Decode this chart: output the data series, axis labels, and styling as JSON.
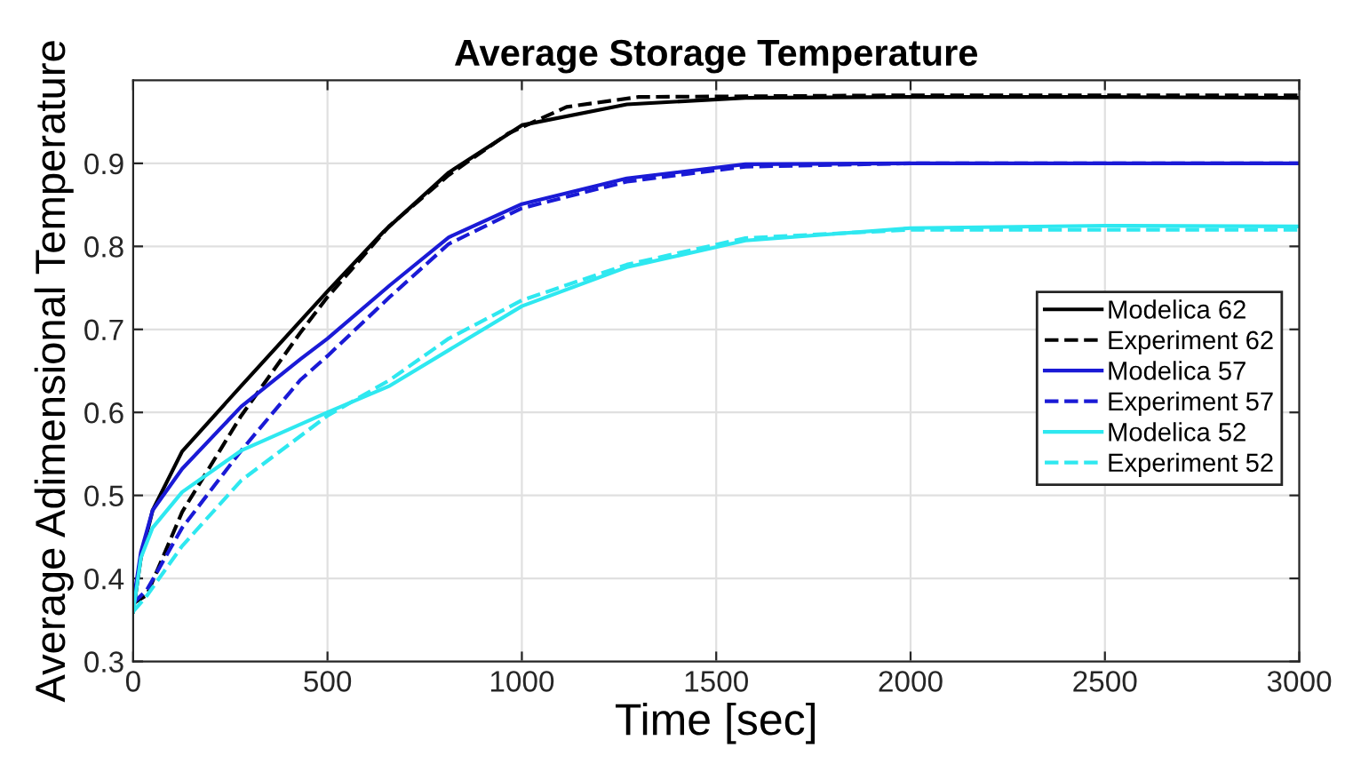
{
  "chart_data": {
    "type": "line",
    "title": "Average Storage Temperature",
    "xlabel": "Time [sec]",
    "ylabel": "Average Adimensional Temperature",
    "xlim": [
      0,
      3000
    ],
    "ylim": [
      0.3,
      1.0
    ],
    "xticks": [
      0,
      500,
      1000,
      1500,
      2000,
      2500,
      3000
    ],
    "yticks": [
      0.3,
      0.4,
      0.5,
      0.6,
      0.7,
      0.8,
      0.9
    ],
    "grid": true,
    "legend": "right",
    "series": [
      {
        "name": "Modelica 62",
        "color": "#000000",
        "line_style": "solid",
        "x": [
          0,
          20,
          50,
          126,
          278,
          500,
          645,
          812,
          1000,
          1270,
          1575,
          2000,
          2500,
          3000
        ],
        "values": [
          0.36,
          0.425,
          0.482,
          0.553,
          0.632,
          0.746,
          0.818,
          0.889,
          0.946,
          0.971,
          0.979,
          0.98,
          0.98,
          0.979
        ]
      },
      {
        "name": "Experiment 62",
        "color": "#000000",
        "line_style": "dashed",
        "x": [
          0,
          35,
          126,
          278,
          430,
          500,
          660,
          812,
          965,
          1115,
          1300,
          2000,
          2500,
          3000
        ],
        "values": [
          0.37,
          0.38,
          0.48,
          0.596,
          0.696,
          0.739,
          0.825,
          0.886,
          0.936,
          0.968,
          0.98,
          0.982,
          0.982,
          0.982
        ]
      },
      {
        "name": "Modelica 57",
        "color": "#1a1ad6",
        "line_style": "solid",
        "x": [
          0,
          20,
          50,
          126,
          278,
          430,
          500,
          660,
          812,
          1000,
          1270,
          1575,
          2000,
          3000
        ],
        "values": [
          0.37,
          0.432,
          0.482,
          0.532,
          0.607,
          0.664,
          0.689,
          0.753,
          0.811,
          0.851,
          0.882,
          0.899,
          0.9,
          0.9
        ]
      },
      {
        "name": "Experiment 57",
        "color": "#1a1ad6",
        "line_style": "dashed",
        "x": [
          0,
          35,
          126,
          278,
          430,
          500,
          660,
          812,
          1000,
          1270,
          1575,
          2000,
          3000
        ],
        "values": [
          0.37,
          0.386,
          0.461,
          0.554,
          0.639,
          0.668,
          0.739,
          0.803,
          0.846,
          0.878,
          0.896,
          0.9,
          0.9
        ]
      },
      {
        "name": "Modelica 52",
        "color": "#2ee8f0",
        "line_style": "solid",
        "x": [
          0,
          20,
          50,
          126,
          278,
          500,
          660,
          812,
          1000,
          1270,
          1575,
          2000,
          2500,
          3000
        ],
        "values": [
          0.36,
          0.425,
          0.461,
          0.504,
          0.554,
          0.6,
          0.632,
          0.675,
          0.728,
          0.775,
          0.807,
          0.822,
          0.825,
          0.824
        ]
      },
      {
        "name": "Experiment 52",
        "color": "#2ee8f0",
        "line_style": "dashed",
        "x": [
          0,
          35,
          126,
          278,
          500,
          660,
          812,
          1000,
          1270,
          1575,
          2000,
          2500,
          3000
        ],
        "values": [
          0.36,
          0.379,
          0.439,
          0.518,
          0.596,
          0.639,
          0.689,
          0.735,
          0.778,
          0.81,
          0.82,
          0.82,
          0.82
        ]
      }
    ]
  }
}
